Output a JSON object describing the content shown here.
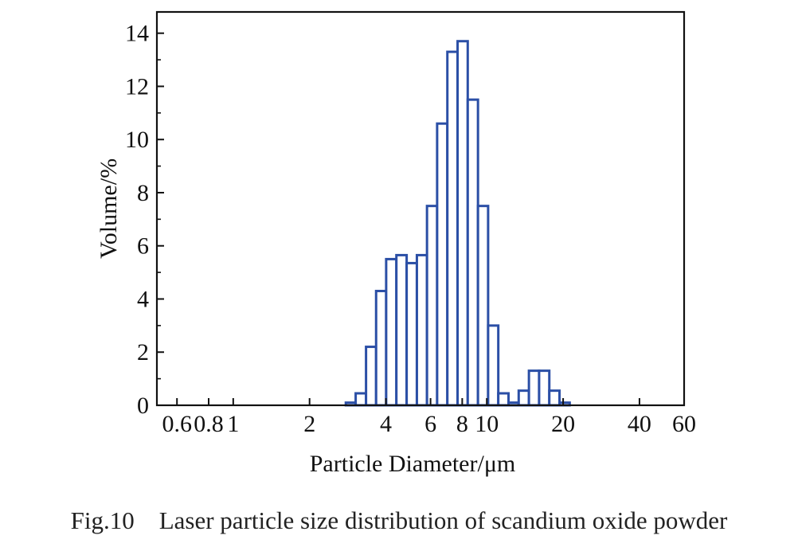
{
  "chart_data": {
    "type": "bar",
    "xscale": "log",
    "xlabel": "Particle Diameter/μm",
    "ylabel": "Volume/%",
    "xlim": [
      0.5,
      60
    ],
    "ylim": [
      0,
      14.8
    ],
    "x_ticks": [
      "0.6",
      "0.8",
      "1",
      "2",
      "4",
      "6",
      "8",
      "10",
      "20",
      "40",
      "60"
    ],
    "y_ticks": [
      "0",
      "2",
      "4",
      "6",
      "8",
      "10",
      "12",
      "14"
    ],
    "grid": false,
    "legend": "none",
    "bar_color": "#2b4fa6",
    "bin_edges": [
      2.78,
      3.04,
      3.34,
      3.66,
      4.01,
      4.4,
      4.83,
      5.3,
      5.81,
      6.37,
      6.99,
      7.67,
      8.41,
      9.23,
      10.12,
      11.1,
      12.18,
      13.36,
      14.66,
      16.08,
      17.64,
      19.35,
      21.23
    ],
    "values": [
      0.1,
      0.45,
      2.2,
      4.3,
      5.5,
      5.65,
      5.35,
      5.65,
      7.5,
      10.6,
      13.3,
      13.7,
      11.5,
      7.5,
      3.0,
      0.45,
      0.1,
      0.55,
      1.3,
      1.3,
      0.55,
      0.1
    ]
  },
  "caption": "Fig.10    Laser particle size distribution of scandium oxide powder"
}
